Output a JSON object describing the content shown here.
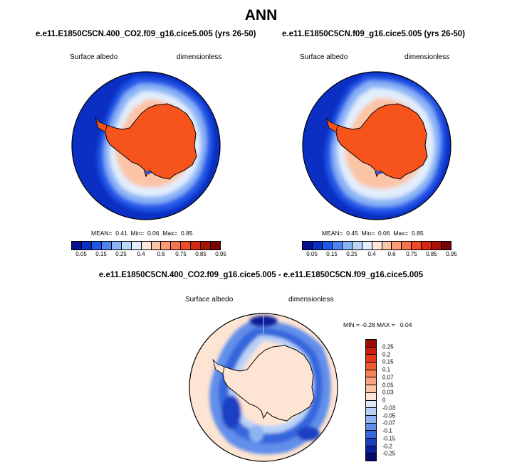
{
  "title": "ANN",
  "panels": [
    {
      "case_title": "e.e11.E1850C5CN.400_CO2.f09_g16.cice5.005 (yrs 26-50)",
      "variable": "Surface albedo",
      "units": "dimensionless",
      "mean_label": "MEAN=",
      "mean": "0.41",
      "min_label": "Min=",
      "min": "0.06",
      "max_label": "Max=",
      "max": "0.85"
    },
    {
      "case_title": "e.e11.E1850C5CN.f09_g16.cice5.005 (yrs 26-50)",
      "variable": "Surface albedo",
      "units": "dimensionless",
      "mean_label": "MEAN=",
      "mean": "0.45",
      "min_label": "Min=",
      "min": "0.06",
      "max_label": "Max=",
      "max": "0.85"
    }
  ],
  "diff": {
    "title": "e.e11.E1850C5CN.400_CO2.f09_g16.cice5.005 - e.e11.E1850C5CN.f09_g16.cice5.005",
    "variable": "Surface albedo",
    "units": "dimensionless",
    "min_label": "MIN =",
    "min": "-0.28",
    "max_label": "MAX =",
    "max": "0.04"
  },
  "abs_colorbar": {
    "ticks": [
      "0.05",
      "0.15",
      "0.25",
      "0.4",
      "0.6",
      "0.75",
      "0.85",
      "0.95"
    ],
    "colors": [
      "#08108f",
      "#0a2fc2",
      "#2157e8",
      "#4f84f0",
      "#89b3f6",
      "#bcd6fa",
      "#e2eefd",
      "#fde7d8",
      "#fcc4a6",
      "#fa9c76",
      "#f6744b",
      "#ef4a24",
      "#d52812",
      "#aa1208",
      "#7a0303"
    ]
  },
  "diff_colorbar": {
    "ticks": [
      "0.25",
      "0.2",
      "0.15",
      "0.1",
      "0.07",
      "0.05",
      "0.03",
      "0",
      "-0.03",
      "-0.05",
      "-0.07",
      "-0.1",
      "-0.15",
      "-0.2",
      "-0.25"
    ],
    "colors": [
      "#9b0e05",
      "#c81e0d",
      "#e3391b",
      "#f05a31",
      "#f68057",
      "#f9a47f",
      "#fbc5a8",
      "#fde4d3",
      "#dbe9fb",
      "#b7d1f7",
      "#8fb4f2",
      "#628fea",
      "#3566dd",
      "#1a3fc3",
      "#0a1f99",
      "#040a6c"
    ]
  }
}
